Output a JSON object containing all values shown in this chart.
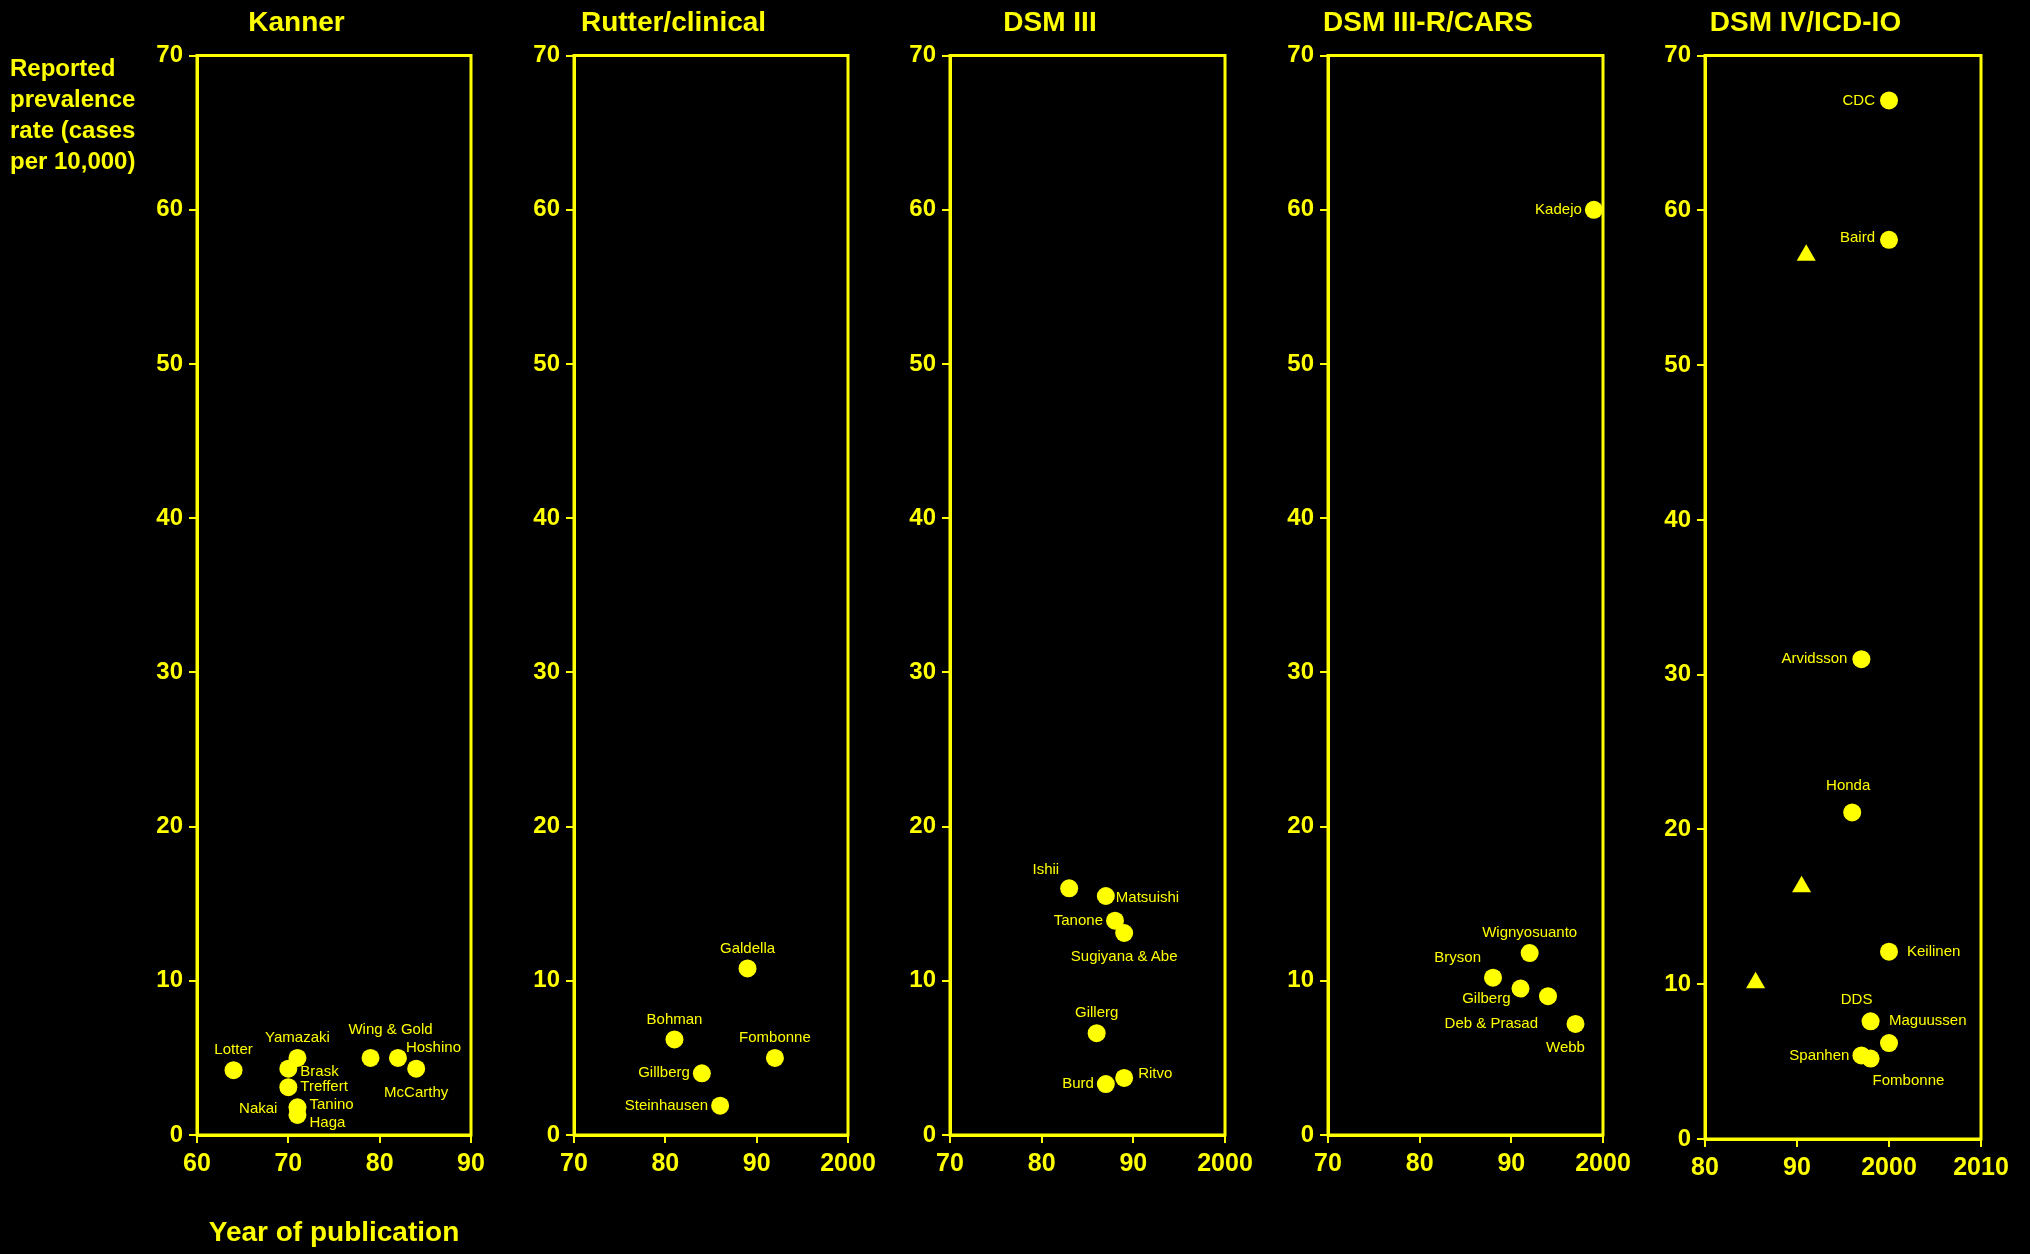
{
  "chart_data": [
    {
      "type": "scatter",
      "title": "Kanner",
      "ylabel": "Reported prevalence rate (cases per 10,000)",
      "xlabel": "Year of publication",
      "xlim": [
        1960,
        1990
      ],
      "xticks": [
        {
          "value": 1960,
          "label": "60"
        },
        {
          "value": 1970,
          "label": "70"
        },
        {
          "value": 1980,
          "label": "80"
        },
        {
          "value": 1990,
          "label": "90"
        }
      ],
      "ylim": [
        0,
        70
      ],
      "yticks": [
        0,
        10,
        20,
        30,
        40,
        50,
        60,
        70
      ],
      "annotations": [
        {
          "text": "Nakai",
          "x": 1971,
          "y": 1.8
        }
      ],
      "series": [
        {
          "color": "#ffff00",
          "marker": "circle",
          "x": [
            1964,
            1971,
            1970,
            1970,
            1971,
            1971,
            1979,
            1982,
            1984
          ],
          "values": [
            4.2,
            5.0,
            4.3,
            3.1,
            1.8,
            1.3,
            5.0,
            5.0,
            4.3
          ],
          "value_labels": [
            "Lotter",
            "Yamazaki",
            "Brask",
            "Treffert",
            "Tanino",
            "Haga",
            "Wing & Gold",
            "Hoshino",
            "McCarthy"
          ]
        }
      ]
    },
    {
      "type": "scatter",
      "title": "Rutter/clinical",
      "xlim": [
        1970,
        2000
      ],
      "xticks": [
        {
          "value": 1970,
          "label": "70"
        },
        {
          "value": 1980,
          "label": "80"
        },
        {
          "value": 1990,
          "label": "90"
        },
        {
          "value": 2000,
          "label": "2000"
        }
      ],
      "ylim": [
        0,
        70
      ],
      "yticks": [
        0,
        10,
        20,
        30,
        40,
        50,
        60,
        70
      ],
      "series": [
        {
          "color": "#ffff00",
          "marker": "circle",
          "x": [
            1989,
            1981,
            1992,
            1984,
            1986
          ],
          "values": [
            10.8,
            6.2,
            5.0,
            4.0,
            1.9
          ],
          "value_labels": [
            "Galdella",
            "Bohman",
            "Fombonne",
            "Gillberg",
            "Steinhausen"
          ]
        }
      ]
    },
    {
      "type": "scatter",
      "title": "DSM III",
      "xlim": [
        1970,
        2000
      ],
      "xticks": [
        {
          "value": 1970,
          "label": "70"
        },
        {
          "value": 1980,
          "label": "80"
        },
        {
          "value": 1990,
          "label": "90"
        },
        {
          "value": 2000,
          "label": "2000"
        }
      ],
      "ylim": [
        0,
        70
      ],
      "yticks": [
        0,
        10,
        20,
        30,
        40,
        50,
        60,
        70
      ],
      "series": [
        {
          "color": "#ffff00",
          "marker": "circle",
          "x": [
            1983,
            1987,
            1988,
            1989,
            1986,
            1987,
            1989
          ],
          "values": [
            16.0,
            15.5,
            13.9,
            13.1,
            6.6,
            3.3,
            3.7
          ],
          "value_labels": [
            "Ishii",
            "Matsuishi",
            "Tanone",
            "Sugiyana & Abe",
            "Gillerg",
            "Burd",
            "Ritvo"
          ]
        }
      ]
    },
    {
      "type": "scatter",
      "title": "DSM III-R/CARS",
      "xlim": [
        1970,
        2000
      ],
      "xticks": [
        {
          "value": 1970,
          "label": "70"
        },
        {
          "value": 1980,
          "label": "80"
        },
        {
          "value": 1990,
          "label": "90"
        },
        {
          "value": 2000,
          "label": "2000"
        }
      ],
      "ylim": [
        0,
        70
      ],
      "yticks": [
        0,
        10,
        20,
        30,
        40,
        50,
        60,
        70
      ],
      "series": [
        {
          "color": "#ffff00",
          "marker": "circle",
          "x": [
            1999,
            1992,
            1988,
            1991,
            1994,
            1997
          ],
          "values": [
            60.0,
            11.8,
            10.2,
            9.5,
            9.0,
            7.2
          ],
          "value_labels": [
            "Kadejo",
            "Wignyosuanto",
            "Bryson",
            "Gilberg",
            "Deb & Prasad",
            "Webb"
          ]
        }
      ]
    },
    {
      "type": "scatter",
      "title": "DSM IV/ICD-IO",
      "xlim": [
        1980,
        2010
      ],
      "xticks": [
        {
          "value": 1980,
          "label": "80"
        },
        {
          "value": 1990,
          "label": "90"
        },
        {
          "value": 2000,
          "label": "2000"
        },
        {
          "value": 2010,
          "label": "2010"
        }
      ],
      "ylim": [
        0,
        70
      ],
      "yticks": [
        0,
        10,
        20,
        30,
        40,
        50,
        60,
        70
      ],
      "series": [
        {
          "color": "#ffff00",
          "marker": "circle",
          "x": [
            2000,
            2000,
            1997,
            1996,
            2000,
            1998,
            2000,
            1997,
            1998
          ],
          "values": [
            67.1,
            58.1,
            31.0,
            21.1,
            12.1,
            7.6,
            6.2,
            5.4,
            5.2
          ],
          "value_labels": [
            "CDC",
            "Baird",
            "Arvidsson",
            "Honda",
            "Keilinen",
            "DDS",
            "Maguussen",
            "Spanhen",
            "Fombonne"
          ]
        },
        {
          "color": "#ffff00",
          "marker": "triangle",
          "x": [
            1991,
            1990.5,
            1985.5
          ],
          "values": [
            57.1,
            16.3,
            10.1
          ]
        }
      ]
    }
  ]
}
